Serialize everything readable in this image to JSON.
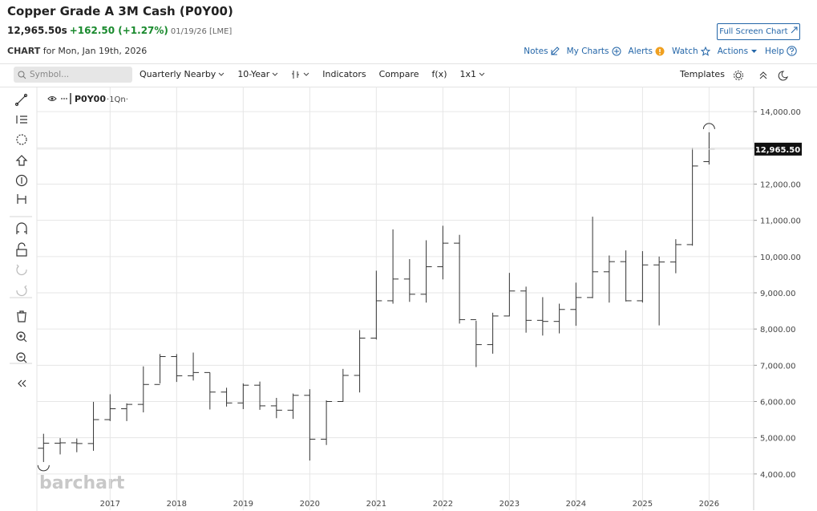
{
  "header": {
    "title": "Copper Grade A 3M Cash (P0Y00)",
    "last_price": "12,965.50s",
    "change": "+162.50 (+1.27%)",
    "date": "01/19/26 [LME]",
    "chart_label": "CHART",
    "chart_date": "for Mon, Jan 19th, 2026",
    "full_screen": "Full Screen Chart",
    "links": [
      "Notes",
      "My Charts",
      "Alerts",
      "Watch",
      "Actions",
      "Help"
    ]
  },
  "toolbar": {
    "symbol_placeholder": "Symbol...",
    "items": [
      "Quarterly Nearby",
      "10-Year",
      "Indicators",
      "Compare",
      "f(x)",
      "1x1"
    ],
    "templates": "Templates"
  },
  "chart_data": {
    "type": "ohlc",
    "legend": "P0Y00",
    "legend_suffix": "·1Qn·",
    "watermark": "barchart",
    "last_value_label": "12,965.50",
    "color": "#333333",
    "grid": true,
    "x": [
      2016,
      2016.25,
      2016.5,
      2016.75,
      2017,
      2017.25,
      2017.5,
      2017.75,
      2018,
      2018.25,
      2018.5,
      2018.75,
      2019,
      2019.25,
      2019.5,
      2019.75,
      2020,
      2020.25,
      2020.5,
      2020.75,
      2021,
      2021.25,
      2021.5,
      2021.75,
      2022,
      2022.25,
      2022.5,
      2022.75,
      2023,
      2023.25,
      2023.5,
      2023.75,
      2024,
      2024.25,
      2024.5,
      2024.75,
      2025,
      2025.25,
      2025.5,
      2025.75,
      2026
    ],
    "open": [
      4710,
      4850,
      4860,
      4840,
      5500,
      5800,
      5920,
      6470,
      7240,
      6710,
      6800,
      6260,
      5960,
      6450,
      5880,
      5760,
      6170,
      4960,
      6000,
      6720,
      7750,
      8780,
      9380,
      8960,
      9720,
      10370,
      8260,
      7570,
      8360,
      9050,
      8240,
      8210,
      8540,
      8870,
      9580,
      9860,
      8780,
      9770,
      9850,
      10330,
      12620
    ],
    "high": [
      5110,
      4990,
      4980,
      5990,
      6200,
      5950,
      6970,
      7310,
      7310,
      7350,
      6800,
      6380,
      6500,
      6550,
      6100,
      6220,
      6340,
      6030,
      6900,
      7970,
      9610,
      10750,
      9930,
      10450,
      10850,
      10600,
      8230,
      8450,
      9550,
      9170,
      8880,
      8700,
      9280,
      11100,
      10030,
      10170,
      10150,
      10000,
      10480,
      12990,
      13430
    ],
    "low": [
      4330,
      4540,
      4600,
      4640,
      5460,
      5460,
      5700,
      6500,
      6540,
      6580,
      5780,
      5860,
      5790,
      5770,
      5540,
      5520,
      4370,
      4800,
      5990,
      6250,
      7710,
      8700,
      8750,
      8730,
      9370,
      8150,
      6950,
      7320,
      8350,
      7900,
      7820,
      7880,
      8090,
      8850,
      8730,
      8760,
      8730,
      8100,
      9540,
      10300,
      12540
    ],
    "close": [
      4850,
      4860,
      4840,
      5500,
      5800,
      5920,
      6470,
      7240,
      6710,
      6800,
      6260,
      5960,
      6450,
      5880,
      5760,
      6170,
      4960,
      6000,
      6720,
      7750,
      8780,
      9380,
      8960,
      9720,
      10370,
      8260,
      7570,
      8360,
      9050,
      8240,
      8210,
      8540,
      8870,
      9580,
      9860,
      8780,
      9770,
      9850,
      10330,
      12500,
      12965.5
    ],
    "xlim": [
      2015.9,
      2026.67
    ],
    "xticks": [
      2017,
      2018,
      2019,
      2020,
      2021,
      2022,
      2023,
      2024,
      2025,
      2026
    ],
    "ylim": [
      3000,
      14690
    ],
    "yticks": [
      {
        "value": 4000,
        "label": "4,000.00"
      },
      {
        "value": 5000,
        "label": "5,000.00"
      },
      {
        "value": 6000,
        "label": "6,000.00"
      },
      {
        "value": 7000,
        "label": "7,000.00"
      },
      {
        "value": 8000,
        "label": "8,000.00"
      },
      {
        "value": 9000,
        "label": "9,000.00"
      },
      {
        "value": 10000,
        "label": "10,000.00"
      },
      {
        "value": 11000,
        "label": "11,000.00"
      },
      {
        "value": 12000,
        "label": "12,000.00"
      },
      {
        "value": 13000,
        "label": "13,000.00"
      },
      {
        "value": 14000,
        "label": "14,000.00"
      }
    ]
  }
}
